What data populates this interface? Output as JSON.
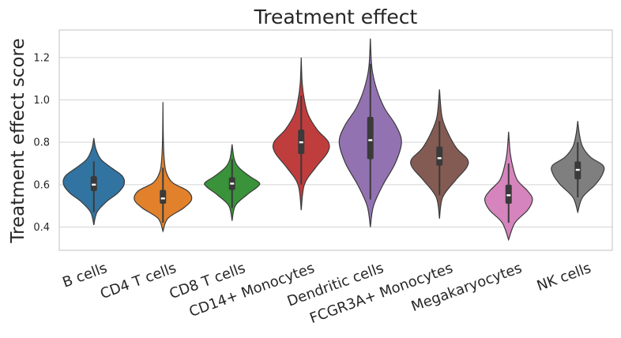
{
  "chart_data": {
    "type": "violin",
    "title": "Treatment effect",
    "xlabel": "",
    "ylabel": "Treatment effect score",
    "ylim": [
      0.29,
      1.33
    ],
    "yticks": [
      0.4,
      0.6,
      0.8,
      1.0,
      1.2
    ],
    "ytick_labels": [
      "0.4",
      "0.6",
      "0.8",
      "1.0",
      "1.2"
    ],
    "grid": "horizontal",
    "categories": [
      "B cells",
      "CD4 T cells",
      "CD8 T cells",
      "CD14+ Monocytes",
      "Dendritic cells",
      "FCGR3A+ Monocytes",
      "Megakaryocytes",
      "NK cells"
    ],
    "colors": [
      "#3274a1",
      "#e1812c",
      "#3a923a",
      "#c03d3e",
      "#9372b2",
      "#845b53",
      "#d684bd",
      "#7f7f7f"
    ],
    "series": [
      {
        "min": 0.41,
        "max": 0.82,
        "q1": 0.57,
        "median": 0.6,
        "q3": 0.64,
        "whisker_low": 0.47,
        "whisker_high": 0.71,
        "density_y": [
          0.41,
          0.47,
          0.52,
          0.56,
          0.6,
          0.64,
          0.68,
          0.72,
          0.77,
          0.82
        ],
        "density_w": [
          0.0,
          0.1,
          0.4,
          0.75,
          0.95,
          0.9,
          0.55,
          0.22,
          0.06,
          0.0
        ]
      },
      {
        "min": 0.38,
        "max": 0.99,
        "q1": 0.51,
        "median": 0.535,
        "q3": 0.575,
        "whisker_low": 0.42,
        "whisker_high": 0.68,
        "density_y": [
          0.38,
          0.44,
          0.49,
          0.53,
          0.57,
          0.61,
          0.66,
          0.72,
          0.8,
          0.9,
          0.99
        ],
        "density_w": [
          0.0,
          0.15,
          0.65,
          0.9,
          0.78,
          0.3,
          0.1,
          0.04,
          0.015,
          0.005,
          0.0
        ]
      },
      {
        "min": 0.43,
        "max": 0.79,
        "q1": 0.575,
        "median": 0.605,
        "q3": 0.635,
        "whisker_low": 0.49,
        "whisker_high": 0.72,
        "density_y": [
          0.43,
          0.5,
          0.55,
          0.59,
          0.61,
          0.64,
          0.68,
          0.72,
          0.79
        ],
        "density_w": [
          0.0,
          0.1,
          0.45,
          0.8,
          0.85,
          0.55,
          0.22,
          0.07,
          0.0
        ]
      },
      {
        "min": 0.48,
        "max": 1.2,
        "q1": 0.745,
        "median": 0.8,
        "q3": 0.86,
        "whisker_low": 0.6,
        "whisker_high": 1.02,
        "density_y": [
          0.48,
          0.6,
          0.68,
          0.75,
          0.8,
          0.86,
          0.93,
          1.0,
          1.08,
          1.2
        ],
        "density_w": [
          0.0,
          0.1,
          0.45,
          0.82,
          0.86,
          0.5,
          0.22,
          0.1,
          0.03,
          0.0
        ]
      },
      {
        "min": 0.4,
        "max": 1.29,
        "q1": 0.72,
        "median": 0.81,
        "q3": 0.92,
        "whisker_low": 0.53,
        "whisker_high": 1.17,
        "density_y": [
          0.4,
          0.5,
          0.6,
          0.7,
          0.8,
          0.88,
          0.96,
          1.05,
          1.15,
          1.29
        ],
        "density_w": [
          0.0,
          0.1,
          0.4,
          0.78,
          0.98,
          0.8,
          0.45,
          0.2,
          0.05,
          0.0
        ]
      },
      {
        "min": 0.44,
        "max": 1.05,
        "q1": 0.69,
        "median": 0.725,
        "q3": 0.78,
        "whisker_low": 0.55,
        "whisker_high": 0.9,
        "density_y": [
          0.44,
          0.54,
          0.62,
          0.68,
          0.72,
          0.77,
          0.84,
          0.92,
          1.05
        ],
        "density_w": [
          0.0,
          0.1,
          0.5,
          0.85,
          0.88,
          0.55,
          0.28,
          0.08,
          0.0
        ]
      },
      {
        "min": 0.34,
        "max": 0.85,
        "q1": 0.51,
        "median": 0.55,
        "q3": 0.6,
        "whisker_low": 0.42,
        "whisker_high": 0.7,
        "density_y": [
          0.34,
          0.42,
          0.48,
          0.53,
          0.57,
          0.62,
          0.68,
          0.75,
          0.85
        ],
        "density_w": [
          0.0,
          0.2,
          0.6,
          0.75,
          0.6,
          0.28,
          0.14,
          0.05,
          0.0
        ]
      },
      {
        "min": 0.47,
        "max": 0.9,
        "q1": 0.625,
        "median": 0.67,
        "q3": 0.71,
        "whisker_low": 0.54,
        "whisker_high": 0.8,
        "density_y": [
          0.47,
          0.54,
          0.6,
          0.65,
          0.69,
          0.73,
          0.78,
          0.84,
          0.9
        ],
        "density_w": [
          0.0,
          0.15,
          0.55,
          0.78,
          0.8,
          0.4,
          0.15,
          0.05,
          0.0
        ]
      }
    ]
  }
}
